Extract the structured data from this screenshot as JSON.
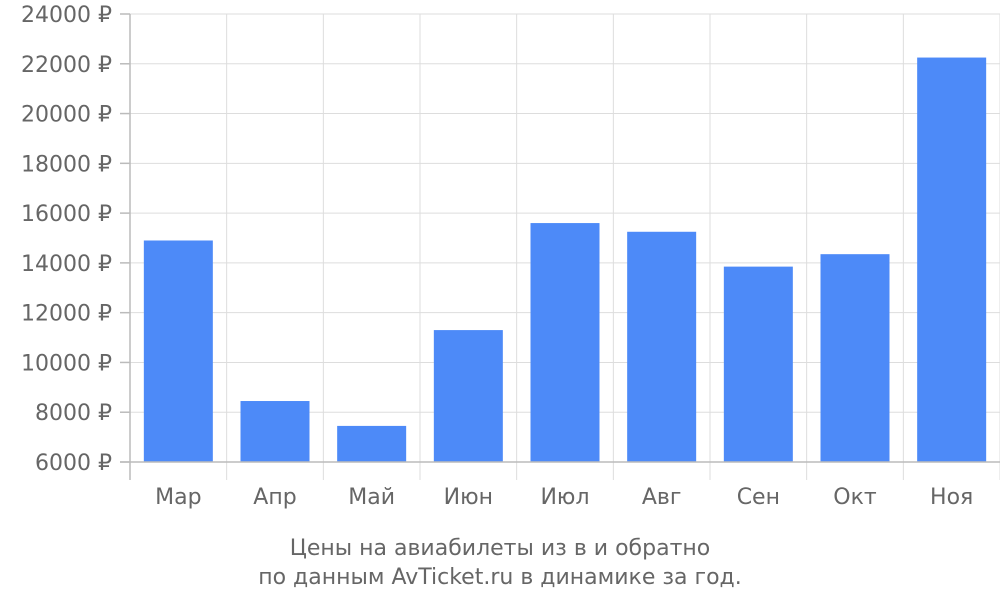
{
  "chart_data": {
    "type": "bar",
    "categories": [
      "Мар",
      "Апр",
      "Май",
      "Июн",
      "Июл",
      "Авг",
      "Сен",
      "Окт",
      "Ноя"
    ],
    "values": [
      14900,
      8450,
      7450,
      11300,
      15600,
      15250,
      13850,
      14350,
      22250
    ],
    "ylim": [
      6000,
      24000
    ],
    "yticks": [
      6000,
      8000,
      10000,
      12000,
      14000,
      16000,
      18000,
      20000,
      22000,
      24000
    ],
    "ytick_suffix": " ₽",
    "grid": true,
    "bar_color": "#4d8af8",
    "caption_line1": "Цены на авиабилеты из  в  и обратно",
    "caption_line2": "по данным AvTicket.ru в динамике за год."
  }
}
